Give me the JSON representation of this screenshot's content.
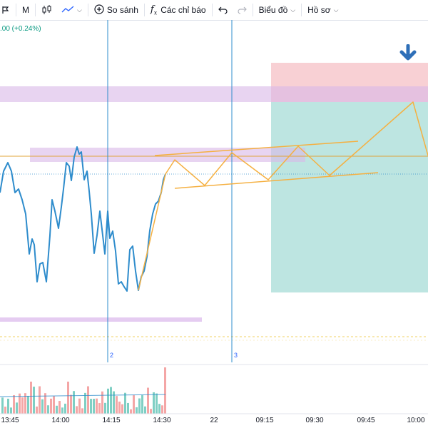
{
  "toolbar": {
    "interval": "M",
    "compare": "So sánh",
    "indicators": "Các chỉ báo",
    "chart_menu": "Biểu đồ",
    "profile_menu": "Hồ sơ"
  },
  "legend": {
    "price_change": ".00 (+0.24%)"
  },
  "markers": {
    "m2": "2",
    "m3": "3"
  },
  "time_axis": [
    "13:45",
    "14:00",
    "14:15",
    "14:30",
    "22",
    "09:15",
    "09:30",
    "09:45",
    "10:00"
  ],
  "colors": {
    "price_line": "#2e8ccc",
    "projection": "#f5b041",
    "horizontal_level": "#e0a43a",
    "zone_purple": "#d9b8e8",
    "zone_target": "#b2e0dc",
    "zone_stop": "#f7c8cc",
    "vertical_marker": "#2e8ccc",
    "volume_up": "#7fcfc4",
    "volume_down": "#f4a6a6"
  },
  "icons": [
    "candles-icon",
    "line-chart-icon",
    "add-circle-icon",
    "fx-icon",
    "undo-icon",
    "redo-icon",
    "arrow-down-icon"
  ]
}
